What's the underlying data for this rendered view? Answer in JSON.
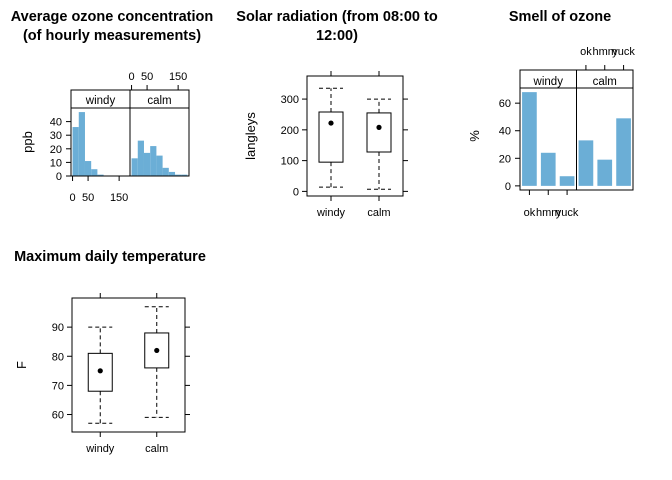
{
  "chart_data": [
    {
      "type": "bar",
      "subtype": "histogram",
      "title": "Average ozone concentration\n(of hourly measurements)",
      "ylabel": "ppb",
      "panels": [
        "windy",
        "calm"
      ],
      "xticks": [
        0,
        50,
        150
      ],
      "xtick_labels": [
        "0",
        "50",
        "150"
      ],
      "xlim": [
        -5,
        185
      ],
      "yticks": [
        0,
        10,
        20,
        30,
        40
      ],
      "ylim": [
        0,
        50
      ],
      "bins": [
        [
          0,
          20
        ],
        [
          20,
          40
        ],
        [
          40,
          60
        ],
        [
          60,
          80
        ],
        [
          80,
          100
        ],
        [
          100,
          120
        ],
        [
          120,
          140
        ],
        [
          140,
          160
        ],
        [
          160,
          180
        ]
      ],
      "series": [
        {
          "name": "windy",
          "values": [
            36,
            47,
            11,
            5,
            1,
            0,
            0,
            0,
            0
          ]
        },
        {
          "name": "calm",
          "values": [
            13,
            26,
            17,
            22,
            15,
            6,
            3,
            1,
            1
          ]
        }
      ],
      "color": "#6baed6",
      "layout": "x ticks on top and bottom, y ticks on left"
    },
    {
      "type": "box",
      "title": "Solar radiation (from 08:00 to\n12:00)",
      "ylabel": "langleys",
      "categories": [
        "windy",
        "calm"
      ],
      "yticks": [
        0,
        100,
        200,
        300
      ],
      "ylim": [
        -15,
        375
      ],
      "boxes": [
        {
          "min": 14,
          "q1": 95,
          "median": 222,
          "q3": 258,
          "max": 335,
          "mean": 222
        },
        {
          "min": 7,
          "q1": 128,
          "median": 208,
          "q3": 255,
          "max": 300,
          "mean": 208
        }
      ]
    },
    {
      "type": "bar",
      "title": "Smell of ozone",
      "ylabel": "%",
      "panels": [
        "windy",
        "calm"
      ],
      "categories": [
        "ok",
        "hmm",
        "yuck"
      ],
      "top_tick_labels": [
        "ok",
        "hmm",
        "yuck"
      ],
      "bottom_tick_labels": [
        "ok",
        "hmm",
        "yuck"
      ],
      "yticks": [
        0,
        20,
        40,
        60
      ],
      "ylim": [
        -3,
        71
      ],
      "series": [
        {
          "name": "windy",
          "values": [
            68,
            24,
            7
          ]
        },
        {
          "name": "calm",
          "values": [
            33,
            19,
            49
          ]
        }
      ],
      "color": "#6baed6"
    },
    {
      "type": "box",
      "title": "Maximum daily temperature",
      "ylabel": "F",
      "categories": [
        "windy",
        "calm"
      ],
      "yticks": [
        60,
        70,
        80,
        90
      ],
      "ylim": [
        54,
        100
      ],
      "boxes": [
        {
          "min": 57,
          "q1": 68,
          "median": 75,
          "q3": 81,
          "max": 90,
          "mean": 75
        },
        {
          "min": 59,
          "q1": 76,
          "median": 82,
          "q3": 88,
          "max": 97,
          "mean": 82
        }
      ]
    }
  ]
}
